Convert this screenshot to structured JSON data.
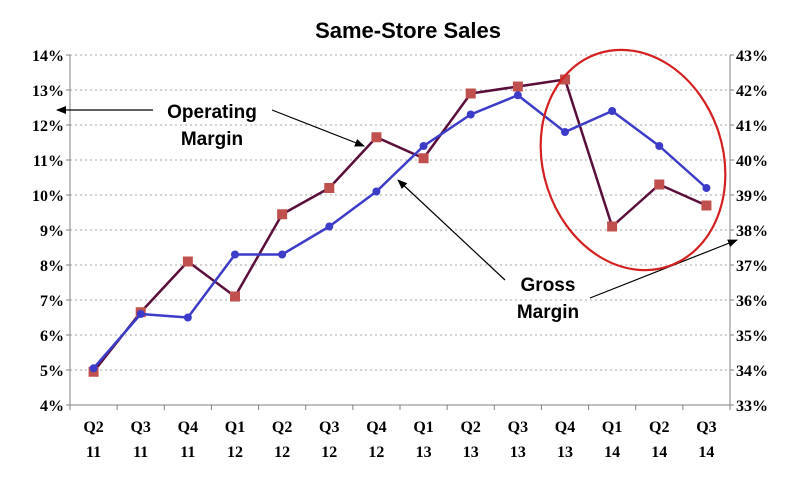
{
  "chart_data": {
    "type": "line",
    "title": "Same-Store Sales",
    "categories": [
      [
        "Q2",
        "11"
      ],
      [
        "Q3",
        "11"
      ],
      [
        "Q4",
        "11"
      ],
      [
        "Q1",
        "12"
      ],
      [
        "Q2",
        "12"
      ],
      [
        "Q3",
        "12"
      ],
      [
        "Q4",
        "12"
      ],
      [
        "Q1",
        "13"
      ],
      [
        "Q2",
        "13"
      ],
      [
        "Q3",
        "13"
      ],
      [
        "Q4",
        "13"
      ],
      [
        "Q1",
        "14"
      ],
      [
        "Q2",
        "14"
      ],
      [
        "Q3",
        "14"
      ]
    ],
    "y_left": {
      "ylim": [
        4,
        14
      ],
      "ticks": [
        "4%",
        "5%",
        "6%",
        "7%",
        "8%",
        "9%",
        "10%",
        "11%",
        "12%",
        "13%",
        "14%"
      ]
    },
    "y_right": {
      "ylim": [
        33,
        43
      ],
      "ticks": [
        "33%",
        "34%",
        "35%",
        "36%",
        "37%",
        "38%",
        "39%",
        "40%",
        "41%",
        "42%",
        "43%"
      ]
    },
    "grid": "horizontal",
    "series": [
      {
        "name": "Operating Margin",
        "axis": "left",
        "color": "#5a0f3a",
        "marker_color": "#c0504d",
        "marker": "square",
        "values": [
          4.95,
          6.65,
          8.1,
          7.1,
          9.45,
          10.2,
          11.65,
          11.05,
          12.9,
          13.1,
          13.3,
          9.1,
          10.3,
          9.7
        ]
      },
      {
        "name": "Gross Margin",
        "axis": "right",
        "color": "#3c3cc8",
        "marker": "circle",
        "values": [
          34.05,
          35.6,
          35.5,
          37.3,
          37.3,
          38.1,
          39.1,
          40.4,
          41.3,
          41.85,
          40.8,
          41.4,
          40.4,
          39.2
        ]
      }
    ],
    "annotations": {
      "operating_label": [
        "Operating",
        "Margin"
      ],
      "gross_label": [
        "Gross",
        "Margin"
      ],
      "highlight": "red ellipse around Q4 13 - Q3 14"
    }
  }
}
